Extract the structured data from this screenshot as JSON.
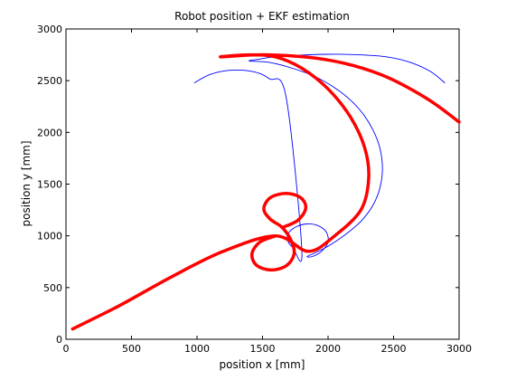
{
  "chart_data": {
    "type": "line",
    "title": "Robot position + EKF estimation",
    "xlabel": "position x [mm]",
    "ylabel": "position y [mm]",
    "xlim": [
      0,
      3000
    ],
    "ylim": [
      0,
      3000
    ],
    "xticks": [
      0,
      500,
      1000,
      1500,
      2000,
      2500,
      3000
    ],
    "yticks": [
      0,
      500,
      1000,
      1500,
      2000,
      2500,
      3000
    ],
    "grid": false,
    "legend": "none",
    "series": [
      {
        "style": "thin-line",
        "color": "#0000ff",
        "points": [
          [
            2890,
            2480
          ],
          [
            2780,
            2590
          ],
          [
            2620,
            2680
          ],
          [
            2450,
            2730
          ],
          [
            2250,
            2750
          ],
          [
            2000,
            2755
          ],
          [
            1760,
            2745
          ],
          [
            1560,
            2725
          ],
          [
            1460,
            2705
          ],
          [
            1400,
            2690
          ],
          [
            1560,
            2675
          ],
          [
            1740,
            2615
          ],
          [
            1900,
            2540
          ],
          [
            2040,
            2440
          ],
          [
            2160,
            2325
          ],
          [
            2260,
            2190
          ],
          [
            2340,
            2030
          ],
          [
            2395,
            1850
          ],
          [
            2415,
            1650
          ],
          [
            2395,
            1460
          ],
          [
            2340,
            1290
          ],
          [
            2250,
            1140
          ],
          [
            2130,
            1010
          ],
          [
            2000,
            900
          ],
          [
            1900,
            835
          ],
          [
            1840,
            800
          ],
          [
            1880,
            800
          ],
          [
            1950,
            850
          ],
          [
            2000,
            940
          ],
          [
            1985,
            1040
          ],
          [
            1920,
            1100
          ],
          [
            1840,
            1115
          ],
          [
            1760,
            1090
          ],
          [
            1700,
            1030
          ],
          [
            1690,
            960
          ],
          [
            1730,
            890
          ],
          [
            1800,
            855
          ],
          [
            1680,
            2340
          ],
          [
            1550,
            2520
          ],
          [
            1420,
            2590
          ],
          [
            1250,
            2600
          ],
          [
            1100,
            2560
          ],
          [
            980,
            2480
          ]
        ]
      },
      {
        "style": "thick-marker-line",
        "color": "#ff0000",
        "points": [
          [
            50,
            100
          ],
          [
            400,
            320
          ],
          [
            800,
            600
          ],
          [
            1200,
            850
          ],
          [
            1600,
            1000
          ],
          [
            1850,
            850
          ],
          [
            2050,
            1000
          ],
          [
            2250,
            1250
          ],
          [
            2310,
            1550
          ],
          [
            2280,
            1850
          ],
          [
            2170,
            2150
          ],
          [
            2000,
            2420
          ],
          [
            1800,
            2620
          ],
          [
            1600,
            2730
          ],
          [
            1400,
            2750
          ],
          [
            1180,
            2730
          ],
          [
            1550,
            2750
          ],
          [
            2000,
            2700
          ],
          [
            2400,
            2560
          ],
          [
            2750,
            2330
          ],
          [
            3000,
            2100
          ]
        ]
      },
      {
        "style": "thick-marker-line",
        "color": "#ff0000",
        "points": [
          [
            1600,
            1000
          ],
          [
            1480,
            940
          ],
          [
            1420,
            830
          ],
          [
            1450,
            720
          ],
          [
            1560,
            670
          ],
          [
            1680,
            710
          ],
          [
            1740,
            820
          ],
          [
            1720,
            950
          ],
          [
            1650,
            1080
          ],
          [
            1560,
            1160
          ],
          [
            1510,
            1260
          ],
          [
            1560,
            1370
          ],
          [
            1680,
            1410
          ],
          [
            1790,
            1370
          ],
          [
            1830,
            1270
          ],
          [
            1770,
            1150
          ],
          [
            1650,
            1080
          ]
        ]
      }
    ]
  }
}
